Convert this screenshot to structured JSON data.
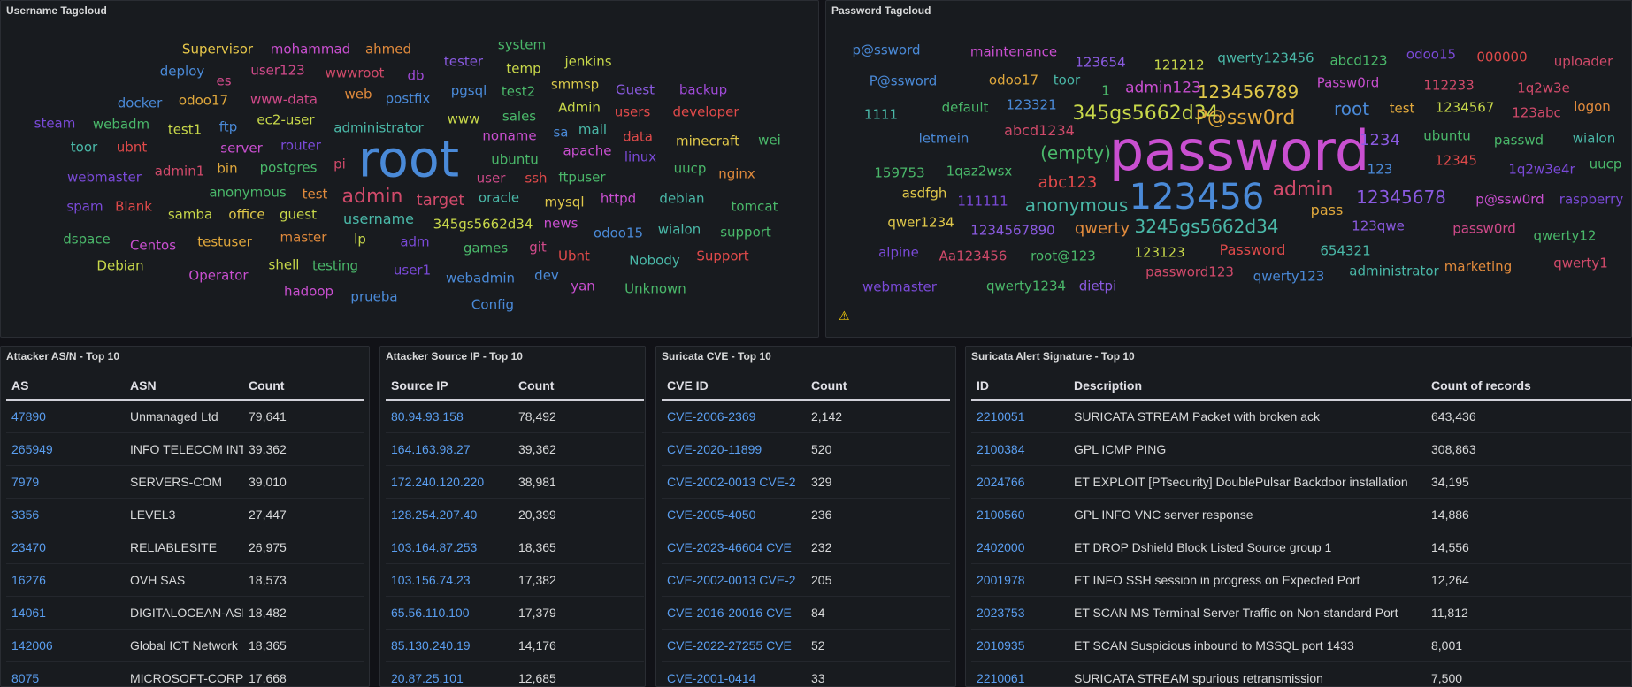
{
  "username_panel": {
    "title": "Username Tagcloud",
    "words": [
      {
        "text": "Supervisor",
        "color": "#e8c84a"
      },
      {
        "text": "mohammad",
        "color": "#c94fd0"
      },
      {
        "text": "ahmed",
        "color": "#e08a3c"
      },
      {
        "text": "tester",
        "color": "#8a5ae0"
      },
      {
        "text": "system",
        "color": "#4ab86a"
      },
      {
        "text": "jenkins",
        "color": "#c8d84a"
      },
      {
        "text": "deploy",
        "color": "#4a8ad8"
      },
      {
        "text": "es",
        "color": "#d04a8a"
      },
      {
        "text": "user123",
        "color": "#d04a8a"
      },
      {
        "text": "wwwroot",
        "color": "#d04a6a"
      },
      {
        "text": "db",
        "color": "#a04ad8"
      },
      {
        "text": "temp",
        "color": "#c8d84a"
      },
      {
        "text": "pgsql",
        "color": "#4a8ad8"
      },
      {
        "text": "test2",
        "color": "#4ab86a"
      },
      {
        "text": "smmsp",
        "color": "#d8c84a"
      },
      {
        "text": "Guest",
        "color": "#8a5ae0"
      },
      {
        "text": "backup",
        "color": "#a04ad8"
      },
      {
        "text": "docker",
        "color": "#4a8ad8"
      },
      {
        "text": "odoo17",
        "color": "#e0a83c"
      },
      {
        "text": "www-data",
        "color": "#d04a8a"
      },
      {
        "text": "web",
        "color": "#e08a3c"
      },
      {
        "text": "postfix",
        "color": "#4a8ad8"
      },
      {
        "text": "Admin",
        "color": "#c8d84a"
      },
      {
        "text": "users",
        "color": "#e04a4a"
      },
      {
        "text": "developer",
        "color": "#e04a4a"
      },
      {
        "text": "steam",
        "color": "#7a4ad8"
      },
      {
        "text": "webadm",
        "color": "#4ab86a"
      },
      {
        "text": "test1",
        "color": "#c8d84a"
      },
      {
        "text": "ftp",
        "color": "#4a8ad8"
      },
      {
        "text": "ec2-user",
        "color": "#c8d84a"
      },
      {
        "text": "administrator",
        "color": "#4ab8a8"
      },
      {
        "text": "www",
        "color": "#c8d84a"
      },
      {
        "text": "sales",
        "color": "#4ab86a"
      },
      {
        "text": "sa",
        "color": "#4a8ad8"
      },
      {
        "text": "mail",
        "color": "#4ab8a8"
      },
      {
        "text": "data",
        "color": "#e04a4a"
      },
      {
        "text": "minecraft",
        "color": "#e0c84a"
      },
      {
        "text": "wei",
        "color": "#4ab86a"
      },
      {
        "text": "toor",
        "color": "#4ab8a8"
      },
      {
        "text": "ubnt",
        "color": "#e04a4a"
      },
      {
        "text": "server",
        "color": "#c94fd0"
      },
      {
        "text": "router",
        "color": "#7a4ad8"
      },
      {
        "text": "root",
        "color": "#4a8ad8"
      },
      {
        "text": "noname",
        "color": "#c94fd0"
      },
      {
        "text": "apache",
        "color": "#c94fd0"
      },
      {
        "text": "linux",
        "color": "#7a4ad8"
      },
      {
        "text": "ubuntu",
        "color": "#4ab86a"
      },
      {
        "text": "uucp",
        "color": "#4ab86a"
      },
      {
        "text": "nginx",
        "color": "#e08a3c"
      },
      {
        "text": "webmaster",
        "color": "#7a4ad8"
      },
      {
        "text": "admin1",
        "color": "#d04a6a"
      },
      {
        "text": "bin",
        "color": "#e0a83c"
      },
      {
        "text": "postgres",
        "color": "#4ab86a"
      },
      {
        "text": "pi",
        "color": "#d04a6a"
      },
      {
        "text": "user",
        "color": "#d04a8a"
      },
      {
        "text": "ssh",
        "color": "#e04a4a"
      },
      {
        "text": "ftpuser",
        "color": "#4ab86a"
      },
      {
        "text": "anonymous",
        "color": "#4ab86a"
      },
      {
        "text": "test",
        "color": "#e08a3c"
      },
      {
        "text": "admin",
        "color": "#d04a6a"
      },
      {
        "text": "target",
        "color": "#d04a6a"
      },
      {
        "text": "oracle",
        "color": "#4ab8a8"
      },
      {
        "text": "mysql",
        "color": "#e0c84a"
      },
      {
        "text": "httpd",
        "color": "#c94fd0"
      },
      {
        "text": "debian",
        "color": "#4ab8a8"
      },
      {
        "text": "tomcat",
        "color": "#4ab86a"
      },
      {
        "text": "spam",
        "color": "#7a4ad8"
      },
      {
        "text": "Blank",
        "color": "#e04a4a"
      },
      {
        "text": "samba",
        "color": "#c8d84a"
      },
      {
        "text": "office",
        "color": "#e0c84a"
      },
      {
        "text": "guest",
        "color": "#c8d84a"
      },
      {
        "text": "username",
        "color": "#4ab8a8"
      },
      {
        "text": "news",
        "color": "#c94fd0"
      },
      {
        "text": "345gs5662d34",
        "color": "#c8d84a"
      },
      {
        "text": "odoo15",
        "color": "#4a8ad8"
      },
      {
        "text": "wialon",
        "color": "#4ab8a8"
      },
      {
        "text": "support",
        "color": "#4ab86a"
      },
      {
        "text": "dspace",
        "color": "#4ab86a"
      },
      {
        "text": "Centos",
        "color": "#c94fd0"
      },
      {
        "text": "testuser",
        "color": "#e0a83c"
      },
      {
        "text": "master",
        "color": "#e08a3c"
      },
      {
        "text": "lp",
        "color": "#c8d84a"
      },
      {
        "text": "adm",
        "color": "#7a4ad8"
      },
      {
        "text": "games",
        "color": "#4ab86a"
      },
      {
        "text": "git",
        "color": "#d04a8a"
      },
      {
        "text": "Ubnt",
        "color": "#e04a4a"
      },
      {
        "text": "Nobody",
        "color": "#4ab8a8"
      },
      {
        "text": "Support",
        "color": "#e04a4a"
      },
      {
        "text": "Debian",
        "color": "#c8d84a"
      },
      {
        "text": "Operator",
        "color": "#c94fd0"
      },
      {
        "text": "shell",
        "color": "#c8d84a"
      },
      {
        "text": "testing",
        "color": "#4ab86a"
      },
      {
        "text": "user1",
        "color": "#7a4ad8"
      },
      {
        "text": "webadmin",
        "color": "#4a8ad8"
      },
      {
        "text": "dev",
        "color": "#4a8ad8"
      },
      {
        "text": "yan",
        "color": "#c94fd0"
      },
      {
        "text": "Unknown",
        "color": "#4ab86a"
      },
      {
        "text": "hadoop",
        "color": "#c94fd0"
      },
      {
        "text": "prueba",
        "color": "#4a8ad8"
      },
      {
        "text": "Config",
        "color": "#4a8ad8"
      }
    ]
  },
  "password_panel": {
    "title": "Password Tagcloud",
    "words": [
      {
        "text": "p@ssword",
        "color": "#4a8ad8"
      },
      {
        "text": "maintenance",
        "color": "#c94fd0"
      },
      {
        "text": "123654",
        "color": "#8a5ae0"
      },
      {
        "text": "121212",
        "color": "#c8d84a"
      },
      {
        "text": "qwerty123456",
        "color": "#4ab8a8"
      },
      {
        "text": "abcd123",
        "color": "#4ab86a"
      },
      {
        "text": "odoo15",
        "color": "#7a4ad8"
      },
      {
        "text": "000000",
        "color": "#e04a4a"
      },
      {
        "text": "uploader",
        "color": "#d04a6a"
      },
      {
        "text": "P@ssword",
        "color": "#4a8ad8"
      },
      {
        "text": "odoo17",
        "color": "#e0a83c"
      },
      {
        "text": "toor",
        "color": "#4ab8a8"
      },
      {
        "text": "1",
        "color": "#4ab86a"
      },
      {
        "text": "admin123",
        "color": "#c94fd0"
      },
      {
        "text": "123456789",
        "color": "#e0c84a"
      },
      {
        "text": "Passw0rd",
        "color": "#c94fd0"
      },
      {
        "text": "112233",
        "color": "#d04a6a"
      },
      {
        "text": "1q2w3e",
        "color": "#d04a6a"
      },
      {
        "text": "1111",
        "color": "#4ab8a8"
      },
      {
        "text": "default",
        "color": "#4ab86a"
      },
      {
        "text": "123321",
        "color": "#4a8ad8"
      },
      {
        "text": "345gs5662d34",
        "color": "#c8d84a"
      },
      {
        "text": "P@ssw0rd",
        "color": "#e0a83c"
      },
      {
        "text": "root",
        "color": "#4a8ad8"
      },
      {
        "text": "test",
        "color": "#e0a83c"
      },
      {
        "text": "1234567",
        "color": "#c8d84a"
      },
      {
        "text": "123abc",
        "color": "#d04a6a"
      },
      {
        "text": "logon",
        "color": "#e08a3c"
      },
      {
        "text": "letmein",
        "color": "#4a8ad8"
      },
      {
        "text": "abcd1234",
        "color": "#d04a6a"
      },
      {
        "text": "password",
        "color": "#c94fd0"
      },
      {
        "text": "1234",
        "color": "#8a5ae0"
      },
      {
        "text": "ubuntu",
        "color": "#4ab86a"
      },
      {
        "text": "passwd",
        "color": "#4ab86a"
      },
      {
        "text": "wialon",
        "color": "#4ab8a8"
      },
      {
        "text": "(empty)",
        "color": "#4ab86a"
      },
      {
        "text": "123",
        "color": "#4a8ad8"
      },
      {
        "text": "12345",
        "color": "#e04a4a"
      },
      {
        "text": "1q2w3e4r",
        "color": "#7a4ad8"
      },
      {
        "text": "uucp",
        "color": "#4ab86a"
      },
      {
        "text": "159753",
        "color": "#4ab86a"
      },
      {
        "text": "1qaz2wsx",
        "color": "#4ab86a"
      },
      {
        "text": "abc123",
        "color": "#e04a4a"
      },
      {
        "text": "123456",
        "color": "#4a8ad8"
      },
      {
        "text": "admin",
        "color": "#d04a6a"
      },
      {
        "text": "12345678",
        "color": "#8a5ae0"
      },
      {
        "text": "p@ssw0rd",
        "color": "#c94fd0"
      },
      {
        "text": "raspberry",
        "color": "#7a4ad8"
      },
      {
        "text": "asdfgh",
        "color": "#e0c84a"
      },
      {
        "text": "111111",
        "color": "#7a4ad8"
      },
      {
        "text": "anonymous",
        "color": "#4ab8a8"
      },
      {
        "text": "pass",
        "color": "#e0a83c"
      },
      {
        "text": "qwer1234",
        "color": "#e0c84a"
      },
      {
        "text": "1234567890",
        "color": "#8a5ae0"
      },
      {
        "text": "qwerty",
        "color": "#e08a3c"
      },
      {
        "text": "3245gs5662d34",
        "color": "#4ab8a8"
      },
      {
        "text": "123qwe",
        "color": "#8a5ae0"
      },
      {
        "text": "passw0rd",
        "color": "#d04a8a"
      },
      {
        "text": "qwerty12",
        "color": "#4ab86a"
      },
      {
        "text": "alpine",
        "color": "#7a4ad8"
      },
      {
        "text": "Aa123456",
        "color": "#d04a6a"
      },
      {
        "text": "root@123",
        "color": "#4ab86a"
      },
      {
        "text": "123123",
        "color": "#c8d84a"
      },
      {
        "text": "Password",
        "color": "#e04a4a"
      },
      {
        "text": "654321",
        "color": "#4ab8a8"
      },
      {
        "text": "marketing",
        "color": "#e08a3c"
      },
      {
        "text": "qwerty1",
        "color": "#d04a6a"
      },
      {
        "text": "webmaster",
        "color": "#7a4ad8"
      },
      {
        "text": "qwerty1234",
        "color": "#4ab86a"
      },
      {
        "text": "dietpi",
        "color": "#8a5ae0"
      },
      {
        "text": "password123",
        "color": "#d04a6a"
      },
      {
        "text": "qwerty123",
        "color": "#4a8ad8"
      },
      {
        "text": "administrator",
        "color": "#4ab8a8"
      }
    ],
    "warning_icon": "warning-icon"
  },
  "asn_panel": {
    "title": "Attacker AS/N - Top 10",
    "columns": [
      "AS",
      "ASN",
      "Count"
    ],
    "rows": [
      [
        "47890",
        "Unmanaged Ltd",
        "79,641"
      ],
      [
        "265949",
        "INFO TELECOM INT",
        "39,362"
      ],
      [
        "7979",
        "SERVERS-COM",
        "39,010"
      ],
      [
        "3356",
        "LEVEL3",
        "27,447"
      ],
      [
        "23470",
        "RELIABLESITE",
        "26,975"
      ],
      [
        "16276",
        "OVH SAS",
        "18,573"
      ],
      [
        "14061",
        "DIGITALOCEAN-ASN",
        "18,482"
      ],
      [
        "142006",
        "Global ICT Network",
        "18,365"
      ],
      [
        "8075",
        "MICROSOFT-CORP",
        "17,668"
      ]
    ]
  },
  "ip_panel": {
    "title": "Attacker Source IP - Top 10",
    "columns": [
      "Source IP",
      "Count"
    ],
    "rows": [
      [
        "80.94.93.158",
        "78,492"
      ],
      [
        "164.163.98.27",
        "39,362"
      ],
      [
        "172.240.120.220",
        "38,981"
      ],
      [
        "128.254.207.40",
        "20,399"
      ],
      [
        "103.164.87.253",
        "18,365"
      ],
      [
        "103.156.74.23",
        "17,382"
      ],
      [
        "65.56.110.100",
        "17,379"
      ],
      [
        "85.130.240.19",
        "14,176"
      ],
      [
        "20.87.25.101",
        "12,685"
      ]
    ]
  },
  "cve_panel": {
    "title": "Suricata CVE - Top 10",
    "columns": [
      "CVE ID",
      "Count"
    ],
    "rows": [
      [
        "CVE-2006-2369",
        "2,142"
      ],
      [
        "CVE-2020-11899",
        "520"
      ],
      [
        "CVE-2002-0013 CVE-2",
        "329"
      ],
      [
        "CVE-2005-4050",
        "236"
      ],
      [
        "CVE-2023-46604 CVE",
        "232"
      ],
      [
        "CVE-2002-0013 CVE-2",
        "205"
      ],
      [
        "CVE-2016-20016 CVE",
        "84"
      ],
      [
        "CVE-2022-27255 CVE",
        "52"
      ],
      [
        "CVE-2001-0414",
        "33"
      ]
    ]
  },
  "signature_panel": {
    "title": "Suricata Alert Signature - Top 10",
    "columns": [
      "ID",
      "Description",
      "Count of records"
    ],
    "rows": [
      [
        "2210051",
        "SURICATA STREAM Packet with broken ack",
        "643,436"
      ],
      [
        "2100384",
        "GPL ICMP PING",
        "308,863"
      ],
      [
        "2024766",
        "ET EXPLOIT [PTsecurity] DoublePulsar Backdoor installation",
        "34,195"
      ],
      [
        "2100560",
        "GPL INFO VNC server response",
        "14,886"
      ],
      [
        "2402000",
        "ET DROP Dshield Block Listed Source group 1",
        "14,556"
      ],
      [
        "2001978",
        "ET INFO SSH session in progress on Expected Port",
        "12,264"
      ],
      [
        "2023753",
        "ET SCAN MS Terminal Server Traffic on Non-standard Port",
        "11,812"
      ],
      [
        "2010935",
        "ET SCAN Suspicious inbound to MSSQL port 1433",
        "8,001"
      ],
      [
        "2210061",
        "SURICATA STREAM spurious retransmission",
        "7,500"
      ]
    ]
  }
}
